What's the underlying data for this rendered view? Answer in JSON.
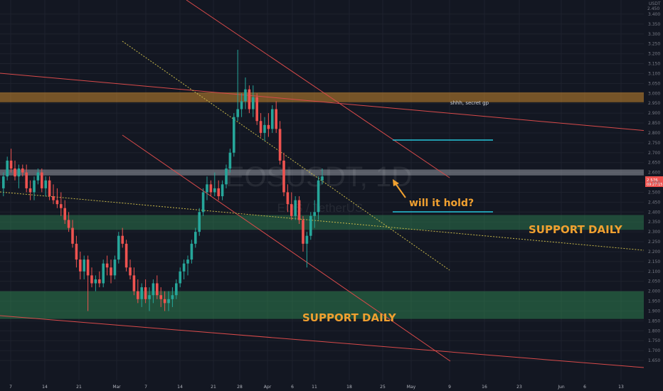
{
  "chart_data": {
    "type": "candlestick",
    "title": "EOSUSDT, 1D",
    "subtitle": "EOS / TetherUS",
    "price_axis_label": "USDT",
    "currency_tag": "2.450",
    "y_range": [
      1.6,
      3.48
    ],
    "y_ticks": [
      "3.400",
      "3.350",
      "3.300",
      "3.250",
      "3.200",
      "3.150",
      "3.100",
      "3.050",
      "3.000",
      "2.950",
      "2.900",
      "2.850",
      "2.800",
      "2.750",
      "2.700",
      "2.650",
      "2.600",
      "2.550",
      "2.500",
      "2.450",
      "2.400",
      "2.350",
      "2.300",
      "2.250",
      "2.200",
      "2.150",
      "2.100",
      "2.050",
      "2.000",
      "1.950",
      "1.900",
      "1.850",
      "1.800",
      "1.750",
      "1.700",
      "1.650"
    ],
    "x_ticks": [
      "7",
      "14",
      "21",
      "Mar",
      "7",
      "14",
      "21",
      "28",
      "Apr",
      "6",
      "11",
      "18",
      "25",
      "May",
      "9",
      "16",
      "23",
      "Jun",
      "6",
      "13"
    ],
    "last_price_label": {
      "price": "2.576",
      "countdown": "09:27:15"
    },
    "candles": [
      [
        2.52,
        2.6,
        2.48,
        2.58
      ],
      [
        2.58,
        2.68,
        2.56,
        2.66
      ],
      [
        2.66,
        2.72,
        2.6,
        2.62
      ],
      [
        2.62,
        2.66,
        2.56,
        2.58
      ],
      [
        2.58,
        2.64,
        2.52,
        2.62
      ],
      [
        2.62,
        2.64,
        2.58,
        2.6
      ],
      [
        2.6,
        2.64,
        2.5,
        2.52
      ],
      [
        2.52,
        2.56,
        2.46,
        2.5
      ],
      [
        2.5,
        2.58,
        2.46,
        2.56
      ],
      [
        2.56,
        2.62,
        2.54,
        2.6
      ],
      [
        2.6,
        2.62,
        2.5,
        2.52
      ],
      [
        2.52,
        2.58,
        2.48,
        2.56
      ],
      [
        2.56,
        2.58,
        2.46,
        2.48
      ],
      [
        2.48,
        2.54,
        2.44,
        2.46
      ],
      [
        2.46,
        2.52,
        2.42,
        2.44
      ],
      [
        2.44,
        2.5,
        2.38,
        2.42
      ],
      [
        2.42,
        2.46,
        2.34,
        2.36
      ],
      [
        2.36,
        2.4,
        2.3,
        2.32
      ],
      [
        2.32,
        2.36,
        2.22,
        2.24
      ],
      [
        2.24,
        2.28,
        2.12,
        2.16
      ],
      [
        2.16,
        2.2,
        2.06,
        2.1
      ],
      [
        2.1,
        2.18,
        2.06,
        2.16
      ],
      [
        2.16,
        2.18,
        1.9,
        2.08
      ],
      [
        2.08,
        2.12,
        2.02,
        2.04
      ],
      [
        2.04,
        2.08,
        2.0,
        2.06
      ],
      [
        2.06,
        2.1,
        2.02,
        2.04
      ],
      [
        2.04,
        2.16,
        2.02,
        2.14
      ],
      [
        2.14,
        2.18,
        2.08,
        2.12
      ],
      [
        2.12,
        2.16,
        2.04,
        2.08
      ],
      [
        2.08,
        2.18,
        2.06,
        2.16
      ],
      [
        2.16,
        2.3,
        2.14,
        2.28
      ],
      [
        2.28,
        2.32,
        2.22,
        2.24
      ],
      [
        2.24,
        2.26,
        2.1,
        2.12
      ],
      [
        2.12,
        2.16,
        2.06,
        2.08
      ],
      [
        2.08,
        2.12,
        1.98,
        2.0
      ],
      [
        2.0,
        2.06,
        1.94,
        1.96
      ],
      [
        1.96,
        2.04,
        1.92,
        2.02
      ],
      [
        2.02,
        2.06,
        1.94,
        1.96
      ],
      [
        1.96,
        2.02,
        1.9,
        1.98
      ],
      [
        1.98,
        2.06,
        1.94,
        2.04
      ],
      [
        2.04,
        2.08,
        1.96,
        1.98
      ],
      [
        1.98,
        2.02,
        1.92,
        1.96
      ],
      [
        1.96,
        2.0,
        1.9,
        1.94
      ],
      [
        1.94,
        2.0,
        1.9,
        1.96
      ],
      [
        1.96,
        2.02,
        1.92,
        1.98
      ],
      [
        1.98,
        2.06,
        1.96,
        2.04
      ],
      [
        2.04,
        2.12,
        2.02,
        2.1
      ],
      [
        2.1,
        2.16,
        2.06,
        2.14
      ],
      [
        2.14,
        2.18,
        2.08,
        2.16
      ],
      [
        2.16,
        2.26,
        2.14,
        2.24
      ],
      [
        2.24,
        2.32,
        2.22,
        2.3
      ],
      [
        2.3,
        2.42,
        2.28,
        2.4
      ],
      [
        2.4,
        2.52,
        2.38,
        2.5
      ],
      [
        2.5,
        2.58,
        2.46,
        2.54
      ],
      [
        2.54,
        2.56,
        2.48,
        2.5
      ],
      [
        2.5,
        2.6,
        2.48,
        2.52
      ],
      [
        2.52,
        2.56,
        2.46,
        2.48
      ],
      [
        2.48,
        2.56,
        2.46,
        2.54
      ],
      [
        2.54,
        2.64,
        2.52,
        2.62
      ],
      [
        2.62,
        2.72,
        2.6,
        2.7
      ],
      [
        2.7,
        2.9,
        2.68,
        2.88
      ],
      [
        2.88,
        3.22,
        2.86,
        2.92
      ],
      [
        2.92,
        3.0,
        2.88,
        2.96
      ],
      [
        2.96,
        3.08,
        2.92,
        3.02
      ],
      [
        3.02,
        3.04,
        2.9,
        2.92
      ],
      [
        2.92,
        3.04,
        2.88,
        2.98
      ],
      [
        2.98,
        3.0,
        2.84,
        2.86
      ],
      [
        2.86,
        2.9,
        2.78,
        2.8
      ],
      [
        2.8,
        2.88,
        2.76,
        2.84
      ],
      [
        2.84,
        2.9,
        2.78,
        2.82
      ],
      [
        2.82,
        2.94,
        2.8,
        2.92
      ],
      [
        2.92,
        2.96,
        2.8,
        2.82
      ],
      [
        2.82,
        2.86,
        2.64,
        2.66
      ],
      [
        2.66,
        2.7,
        2.48,
        2.5
      ],
      [
        2.5,
        2.54,
        2.4,
        2.44
      ],
      [
        2.44,
        2.5,
        2.36,
        2.38
      ],
      [
        2.38,
        2.48,
        2.36,
        2.46
      ],
      [
        2.46,
        2.48,
        2.34,
        2.36
      ],
      [
        2.36,
        2.38,
        2.2,
        2.24
      ],
      [
        2.24,
        2.3,
        2.12,
        2.28
      ],
      [
        2.28,
        2.4,
        2.26,
        2.38
      ],
      [
        2.38,
        2.46,
        2.32,
        2.4
      ],
      [
        2.4,
        2.58,
        2.36,
        2.56
      ],
      [
        2.56,
        2.62,
        2.54,
        2.58
      ]
    ],
    "zones": [
      {
        "label": "shhh, secret gp",
        "range": [
          2.955,
          3.005
        ],
        "color": "#f0a030"
      },
      {
        "label": "",
        "range": [
          2.585,
          2.615
        ],
        "color": "#b2b5be"
      },
      {
        "label": "SUPPORT DAILY",
        "range": [
          2.31,
          2.385
        ],
        "color": "#2e7d4f"
      },
      {
        "label": "SUPPORT DAILY",
        "range": [
          1.86,
          2.0
        ],
        "color": "#2e7d4f"
      }
    ],
    "annotation": "will it hold?",
    "colors": {
      "up": "#26a69a",
      "down": "#ef5350",
      "trend": "#d84a4a",
      "dotted": "#c8b84a",
      "target": "#26c6da",
      "annotation": "#f0a030"
    }
  }
}
